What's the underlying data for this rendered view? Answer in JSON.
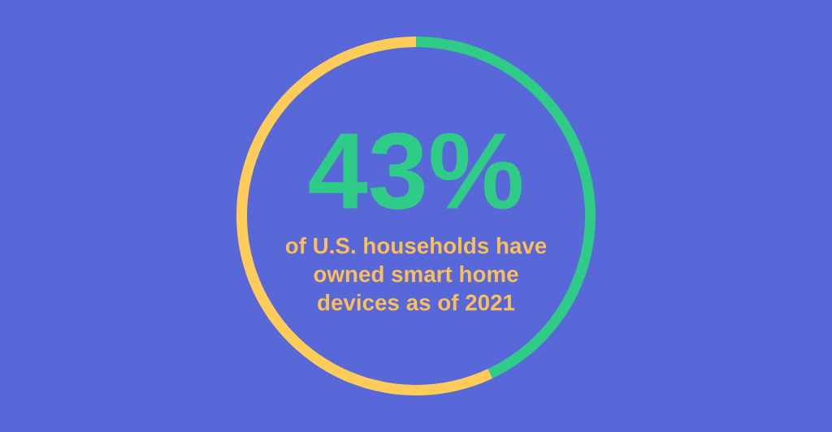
{
  "chart_data": {
    "type": "donut",
    "categories": [
      null,
      null
    ],
    "values": [
      43,
      57
    ],
    "colors": [
      "#2ecc87",
      "#ffcc5a"
    ],
    "annotations": [
      "43%",
      "of U.S. households have\nowned smart home\ndevices as of 2021"
    ]
  }
}
